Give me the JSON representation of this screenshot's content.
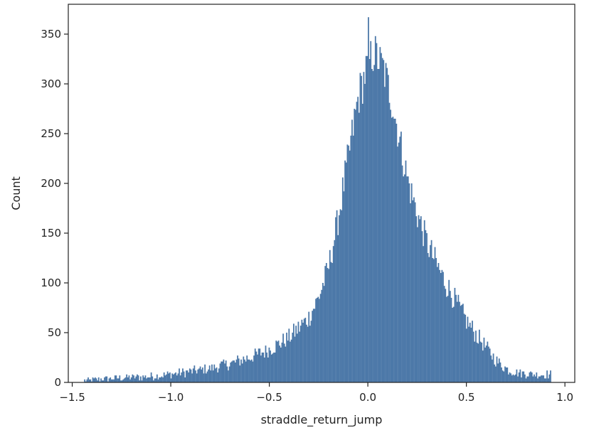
{
  "chart_data": {
    "type": "histogram",
    "title": "",
    "xlabel": "straddle_return_jump",
    "ylabel": "Count",
    "xlim": [
      -1.52,
      1.05
    ],
    "ylim": [
      0,
      380
    ],
    "xticks": [
      -1.5,
      -1.0,
      -0.5,
      0.0,
      0.5,
      1.0
    ],
    "xtick_labels": [
      "−1.5",
      "−1.0",
      "−0.5",
      "0.0",
      "0.5",
      "1.0"
    ],
    "yticks": [
      0,
      50,
      100,
      150,
      200,
      250,
      300,
      350
    ],
    "ytick_labels": [
      "0",
      "50",
      "100",
      "150",
      "200",
      "250",
      "300",
      "350"
    ],
    "grid": false,
    "bar_color": "#4c78a8",
    "bin_range": [
      -1.44,
      0.93
    ],
    "bin_count": 400,
    "distribution": {
      "shape": "asymmetric peak with long left tail",
      "peak_x": 0.03,
      "peak_count": 332,
      "max_bin_count": 367,
      "points": [
        [
          -1.44,
          2
        ],
        [
          -1.3,
          4
        ],
        [
          -1.1,
          6
        ],
        [
          -1.0,
          8
        ],
        [
          -0.9,
          11
        ],
        [
          -0.8,
          14
        ],
        [
          -0.7,
          19
        ],
        [
          -0.6,
          25
        ],
        [
          -0.5,
          33
        ],
        [
          -0.4,
          45
        ],
        [
          -0.3,
          65
        ],
        [
          -0.25,
          85
        ],
        [
          -0.2,
          115
        ],
        [
          -0.15,
          165
        ],
        [
          -0.1,
          225
        ],
        [
          -0.05,
          285
        ],
        [
          0.0,
          320
        ],
        [
          0.03,
          332
        ],
        [
          0.08,
          315
        ],
        [
          0.12,
          285
        ],
        [
          0.15,
          255
        ],
        [
          0.2,
          205
        ],
        [
          0.25,
          170
        ],
        [
          0.3,
          140
        ],
        [
          0.35,
          118
        ],
        [
          0.4,
          98
        ],
        [
          0.45,
          80
        ],
        [
          0.5,
          62
        ],
        [
          0.55,
          48
        ],
        [
          0.6,
          35
        ],
        [
          0.65,
          22
        ],
        [
          0.7,
          14
        ],
        [
          0.75,
          10
        ],
        [
          0.8,
          9
        ],
        [
          0.85,
          8
        ],
        [
          0.93,
          8
        ]
      ]
    }
  }
}
